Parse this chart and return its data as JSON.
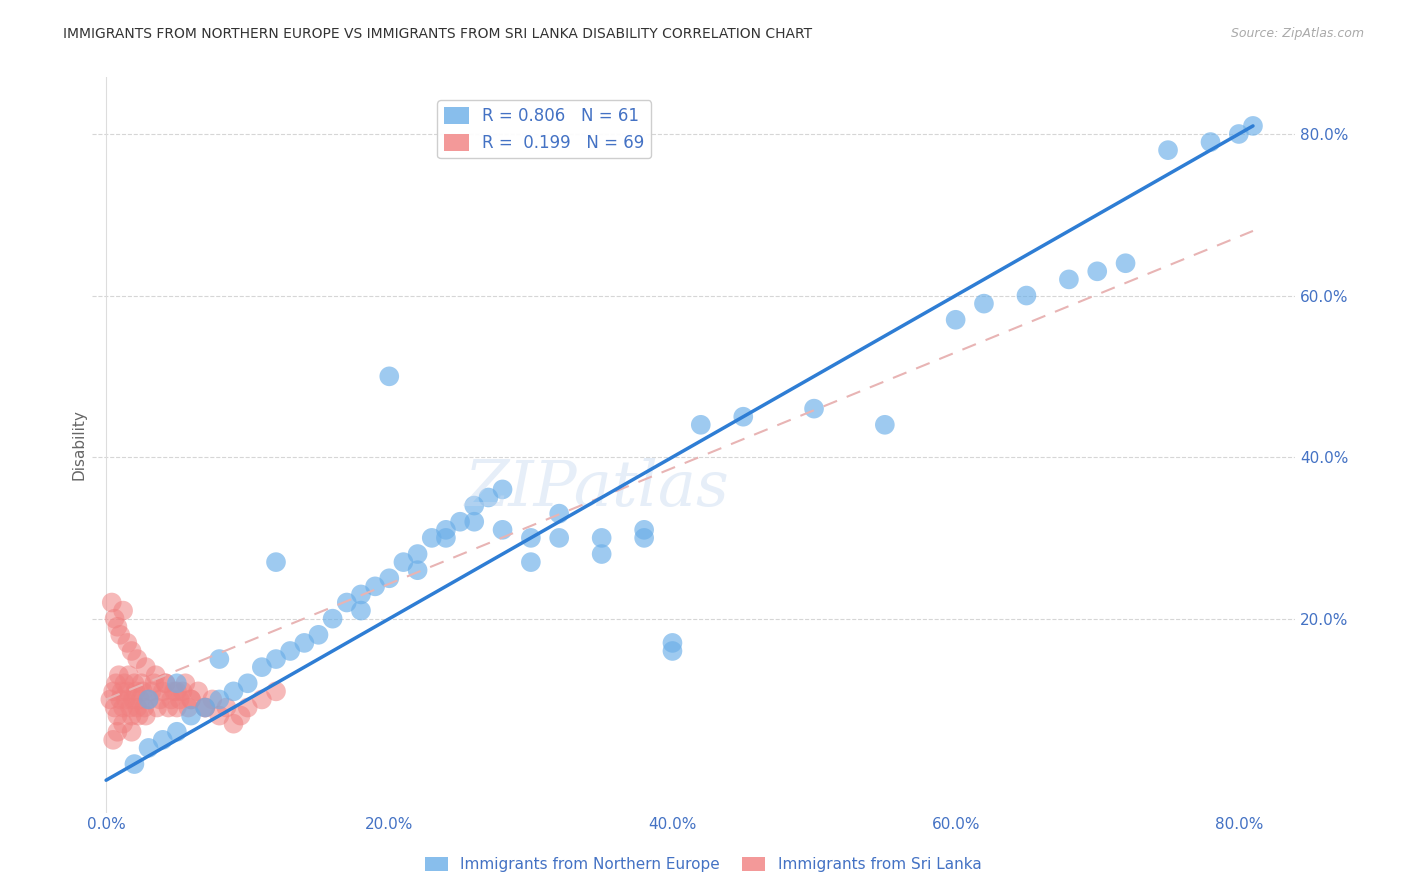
{
  "title": "IMMIGRANTS FROM NORTHERN EUROPE VS IMMIGRANTS FROM SRI LANKA DISABILITY CORRELATION CHART",
  "source": "Source: ZipAtlas.com",
  "ylabel": "Disability",
  "xlim": [
    -0.01,
    0.84
  ],
  "ylim": [
    -0.04,
    0.87
  ],
  "blue_R": 0.806,
  "blue_N": 61,
  "pink_R": 0.199,
  "pink_N": 69,
  "blue_color": "#6aaee8",
  "pink_color": "#f08080",
  "blue_line_color": "#2e7dd4",
  "pink_line_color": "#e8b4b4",
  "watermark": "ZIPatlas",
  "legend_label_blue": "Immigrants from Northern Europe",
  "legend_label_pink": "Immigrants from Sri Lanka",
  "grid_color": "#cccccc",
  "axis_color": "#4472c4",
  "background_color": "#ffffff",
  "blue_x": [
    0.02,
    0.03,
    0.04,
    0.05,
    0.06,
    0.07,
    0.08,
    0.09,
    0.1,
    0.11,
    0.12,
    0.13,
    0.14,
    0.15,
    0.16,
    0.17,
    0.18,
    0.19,
    0.2,
    0.21,
    0.22,
    0.23,
    0.24,
    0.25,
    0.26,
    0.27,
    0.28,
    0.3,
    0.32,
    0.35,
    0.38,
    0.4,
    0.42,
    0.45,
    0.5,
    0.55,
    0.6,
    0.62,
    0.65,
    0.68,
    0.7,
    0.72,
    0.75,
    0.78,
    0.8,
    0.81,
    0.03,
    0.05,
    0.08,
    0.12,
    0.18,
    0.22,
    0.26,
    0.3,
    0.35,
    0.4,
    0.2,
    0.24,
    0.28,
    0.32,
    0.38
  ],
  "blue_y": [
    0.02,
    0.04,
    0.05,
    0.06,
    0.08,
    0.09,
    0.1,
    0.11,
    0.12,
    0.14,
    0.15,
    0.16,
    0.17,
    0.18,
    0.2,
    0.22,
    0.23,
    0.24,
    0.25,
    0.27,
    0.28,
    0.3,
    0.31,
    0.32,
    0.34,
    0.35,
    0.36,
    0.3,
    0.33,
    0.28,
    0.3,
    0.16,
    0.44,
    0.45,
    0.46,
    0.44,
    0.57,
    0.59,
    0.6,
    0.62,
    0.63,
    0.64,
    0.78,
    0.79,
    0.8,
    0.81,
    0.1,
    0.12,
    0.15,
    0.27,
    0.21,
    0.26,
    0.32,
    0.27,
    0.3,
    0.17,
    0.5,
    0.3,
    0.31,
    0.3,
    0.31
  ],
  "pink_x": [
    0.003,
    0.005,
    0.006,
    0.007,
    0.008,
    0.009,
    0.01,
    0.011,
    0.012,
    0.013,
    0.014,
    0.015,
    0.016,
    0.017,
    0.018,
    0.019,
    0.02,
    0.021,
    0.022,
    0.023,
    0.024,
    0.025,
    0.026,
    0.027,
    0.028,
    0.03,
    0.032,
    0.034,
    0.036,
    0.038,
    0.04,
    0.042,
    0.044,
    0.046,
    0.048,
    0.05,
    0.052,
    0.054,
    0.056,
    0.058,
    0.06,
    0.065,
    0.07,
    0.075,
    0.08,
    0.085,
    0.09,
    0.095,
    0.1,
    0.11,
    0.12,
    0.004,
    0.006,
    0.008,
    0.01,
    0.012,
    0.015,
    0.018,
    0.022,
    0.028,
    0.035,
    0.042,
    0.05,
    0.06,
    0.07,
    0.005,
    0.008,
    0.012,
    0.018
  ],
  "pink_y": [
    0.1,
    0.11,
    0.09,
    0.12,
    0.08,
    0.13,
    0.1,
    0.11,
    0.09,
    0.12,
    0.1,
    0.11,
    0.13,
    0.09,
    0.08,
    0.1,
    0.12,
    0.11,
    0.09,
    0.08,
    0.1,
    0.12,
    0.11,
    0.09,
    0.08,
    0.1,
    0.11,
    0.12,
    0.09,
    0.1,
    0.11,
    0.12,
    0.09,
    0.1,
    0.11,
    0.09,
    0.1,
    0.11,
    0.12,
    0.09,
    0.1,
    0.11,
    0.09,
    0.1,
    0.08,
    0.09,
    0.07,
    0.08,
    0.09,
    0.1,
    0.11,
    0.22,
    0.2,
    0.19,
    0.18,
    0.21,
    0.17,
    0.16,
    0.15,
    0.14,
    0.13,
    0.12,
    0.11,
    0.1,
    0.09,
    0.05,
    0.06,
    0.07,
    0.06
  ]
}
